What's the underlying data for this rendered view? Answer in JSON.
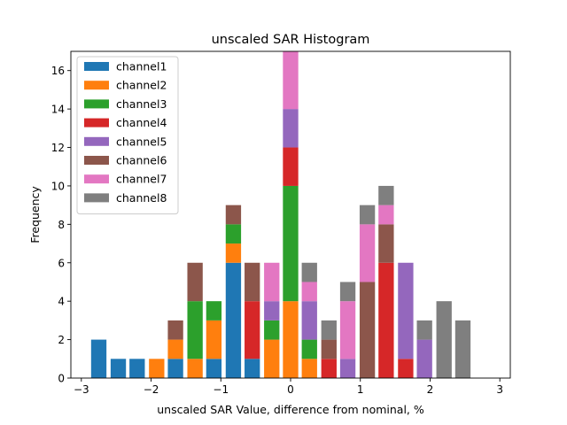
{
  "chart_data": {
    "type": "bar",
    "stacked": true,
    "title": "unscaled SAR Histogram",
    "xlabel": "unscaled SAR Value, difference from nominal, %",
    "ylabel": "Frequency",
    "xlim": [
      -3.15,
      3.15
    ],
    "ylim": [
      0,
      17
    ],
    "xticks": [
      -3,
      -2,
      -1,
      0,
      1,
      2,
      3
    ],
    "xtick_labels": [
      "−3",
      "−2",
      "−1",
      "0",
      "1",
      "2",
      "3"
    ],
    "yticks": [
      0,
      2,
      4,
      6,
      8,
      10,
      12,
      14,
      16
    ],
    "ytick_labels": [
      "0",
      "2",
      "4",
      "6",
      "8",
      "10",
      "12",
      "14",
      "16"
    ],
    "bin_width": 0.22,
    "bin_centers": [
      -2.75,
      -2.47,
      -2.2,
      -1.92,
      -1.65,
      -1.37,
      -1.1,
      -0.82,
      -0.55,
      -0.27,
      0.0,
      0.27,
      0.55,
      0.82,
      1.1,
      1.37,
      1.65,
      1.92,
      2.2,
      2.47,
      2.75
    ],
    "series": [
      {
        "name": "channel1",
        "color": "#1f77b4",
        "values": [
          2,
          1,
          1,
          0,
          1,
          0,
          1,
          6,
          1,
          0,
          0,
          0,
          0,
          0,
          0,
          0,
          0,
          0,
          0,
          0,
          0
        ]
      },
      {
        "name": "channel2",
        "color": "#ff7f0e",
        "values": [
          0,
          0,
          0,
          1,
          1,
          1,
          2,
          1,
          0,
          2,
          4,
          1,
          0,
          0,
          0,
          0,
          0,
          0,
          0,
          0,
          0
        ]
      },
      {
        "name": "channel3",
        "color": "#2ca02c",
        "values": [
          0,
          0,
          0,
          0,
          0,
          3,
          1,
          1,
          0,
          1,
          6,
          1,
          0,
          0,
          0,
          0,
          0,
          0,
          0,
          0,
          0
        ]
      },
      {
        "name": "channel4",
        "color": "#d62728",
        "values": [
          0,
          0,
          0,
          0,
          0,
          0,
          0,
          0,
          3,
          0,
          2,
          0,
          1,
          0,
          0,
          6,
          1,
          0,
          0,
          0,
          0
        ]
      },
      {
        "name": "channel5",
        "color": "#9467bd",
        "values": [
          0,
          0,
          0,
          0,
          0,
          0,
          0,
          0,
          0,
          1,
          2,
          2,
          0,
          1,
          0,
          0,
          5,
          2,
          0,
          0,
          0
        ]
      },
      {
        "name": "channel6",
        "color": "#8c564b",
        "values": [
          0,
          0,
          0,
          0,
          1,
          2,
          0,
          1,
          2,
          0,
          0,
          0,
          1,
          0,
          5,
          2,
          0,
          0,
          0,
          0,
          0
        ]
      },
      {
        "name": "channel7",
        "color": "#e377c2",
        "values": [
          0,
          0,
          0,
          0,
          0,
          0,
          0,
          0,
          0,
          2,
          3,
          1,
          0,
          3,
          3,
          1,
          0,
          0,
          0,
          0,
          0
        ]
      },
      {
        "name": "channel8",
        "color": "#7f7f7f",
        "values": [
          0,
          0,
          0,
          0,
          0,
          0,
          0,
          0,
          0,
          0,
          0,
          1,
          1,
          1,
          1,
          1,
          0,
          1,
          4,
          3,
          0
        ]
      }
    ],
    "legend_position": "top-left"
  }
}
